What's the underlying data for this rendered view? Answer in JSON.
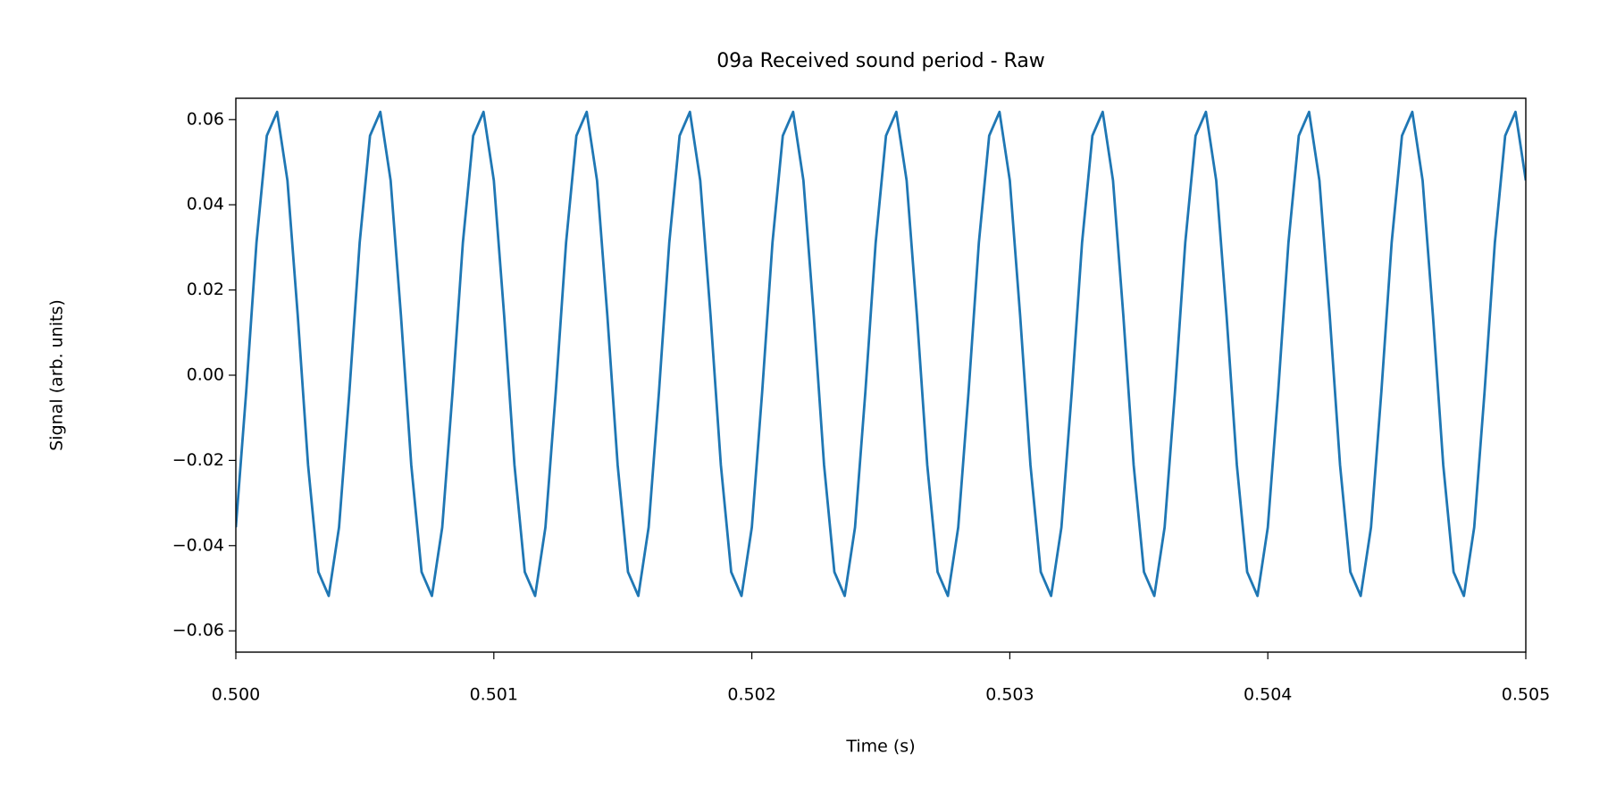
{
  "chart_data": {
    "type": "line",
    "title": "09a Received sound period - Raw",
    "xlabel": "Time (s)",
    "ylabel": "Signal (arb. units)",
    "grid": false,
    "xlim": [
      0.5,
      0.505
    ],
    "ylim": [
      -0.065,
      0.065
    ],
    "xticks": [
      {
        "value": 0.5,
        "label": "0.500"
      },
      {
        "value": 0.501,
        "label": "0.501"
      },
      {
        "value": 0.502,
        "label": "0.502"
      },
      {
        "value": 0.503,
        "label": "0.503"
      },
      {
        "value": 0.504,
        "label": "0.504"
      },
      {
        "value": 0.505,
        "label": "0.505"
      }
    ],
    "yticks": [
      {
        "value": -0.06,
        "label": "−0.06"
      },
      {
        "value": -0.04,
        "label": "−0.04"
      },
      {
        "value": -0.02,
        "label": "−0.02"
      },
      {
        "value": 0,
        "label": "0.00"
      },
      {
        "value": 0.02,
        "label": "0.02"
      },
      {
        "value": 0.04,
        "label": "0.04"
      },
      {
        "value": 0.06,
        "label": "0.06"
      }
    ],
    "x": [
      0.5,
      0.50004,
      0.50008,
      0.50012,
      0.50016,
      0.5002,
      0.50024,
      0.50028,
      0.50032,
      0.50036,
      0.5004,
      0.50044,
      0.50048,
      0.50052,
      0.50056,
      0.5006,
      0.50064,
      0.50068,
      0.50072,
      0.50076,
      0.5008,
      0.50084,
      0.50088,
      0.50092,
      0.50096,
      0.501,
      0.50104,
      0.50108,
      0.50112,
      0.50116,
      0.5012,
      0.50124,
      0.50128,
      0.50132,
      0.50136,
      0.5014,
      0.50144,
      0.50148,
      0.50152,
      0.50156,
      0.5016,
      0.50164,
      0.50168,
      0.50172,
      0.50176,
      0.5018,
      0.50184,
      0.50188,
      0.50192,
      0.50196,
      0.502,
      0.50204,
      0.50208,
      0.50212,
      0.50216,
      0.5022,
      0.50224,
      0.50228,
      0.50232,
      0.50236,
      0.5024,
      0.50244,
      0.50248,
      0.50252,
      0.50256,
      0.5026,
      0.50264,
      0.50268,
      0.50272,
      0.50276,
      0.5028,
      0.50284,
      0.50288,
      0.50292,
      0.50296,
      0.503,
      0.50304,
      0.50308,
      0.50312,
      0.50316,
      0.5032,
      0.50324,
      0.50328,
      0.50332,
      0.50336,
      0.5034,
      0.50344,
      0.50348,
      0.50352,
      0.50356,
      0.5036,
      0.50364,
      0.50368,
      0.50372,
      0.50376,
      0.5038,
      0.50384,
      0.50388,
      0.50392,
      0.50396,
      0.504,
      0.50404,
      0.50408,
      0.50412,
      0.50416,
      0.5042,
      0.50424,
      0.50428,
      0.50432,
      0.50436,
      0.5044,
      0.50444,
      0.50448,
      0.50452,
      0.50456,
      0.5046,
      0.50464,
      0.50468,
      0.50472,
      0.50476,
      0.5048,
      0.50484,
      0.50488,
      0.50492,
      0.50496,
      0.505
    ],
    "series": [
      {
        "color": "#1f77b4",
        "values": [
          -0.0357,
          -0.004,
          0.0311,
          0.0562,
          0.0618,
          0.0457,
          0.014,
          -0.0211,
          -0.0462,
          -0.0518,
          -0.0357,
          -0.004,
          0.0311,
          0.0562,
          0.0618,
          0.0457,
          0.014,
          -0.0211,
          -0.0462,
          -0.0518,
          -0.0357,
          -0.004,
          0.0311,
          0.0562,
          0.0618,
          0.0457,
          0.014,
          -0.0211,
          -0.0462,
          -0.0518,
          -0.0357,
          -0.004,
          0.0311,
          0.0562,
          0.0618,
          0.0457,
          0.014,
          -0.0211,
          -0.0462,
          -0.0518,
          -0.0357,
          -0.004,
          0.0311,
          0.0562,
          0.0618,
          0.0457,
          0.014,
          -0.0211,
          -0.0462,
          -0.0518,
          -0.0357,
          -0.004,
          0.0311,
          0.0562,
          0.0618,
          0.0457,
          0.014,
          -0.0211,
          -0.0462,
          -0.0518,
          -0.0357,
          -0.004,
          0.0311,
          0.0562,
          0.0618,
          0.0457,
          0.014,
          -0.0211,
          -0.0462,
          -0.0518,
          -0.0357,
          -0.004,
          0.0311,
          0.0562,
          0.0618,
          0.0457,
          0.014,
          -0.0211,
          -0.0462,
          -0.0518,
          -0.0357,
          -0.004,
          0.0311,
          0.0562,
          0.0618,
          0.0457,
          0.014,
          -0.0211,
          -0.0462,
          -0.0518,
          -0.0357,
          -0.004,
          0.0311,
          0.0562,
          0.0618,
          0.0457,
          0.014,
          -0.0211,
          -0.0462,
          -0.0518,
          -0.0357,
          -0.004,
          0.0311,
          0.0562,
          0.0618,
          0.0457,
          0.014,
          -0.0211,
          -0.0462,
          -0.0518,
          -0.0357,
          -0.004,
          0.0311,
          0.0562,
          0.0618,
          0.0457,
          0.014,
          -0.0211,
          -0.0462,
          -0.0518,
          -0.0357,
          -0.004,
          0.0311,
          0.0562,
          0.0618,
          0.0457
        ]
      }
    ]
  }
}
